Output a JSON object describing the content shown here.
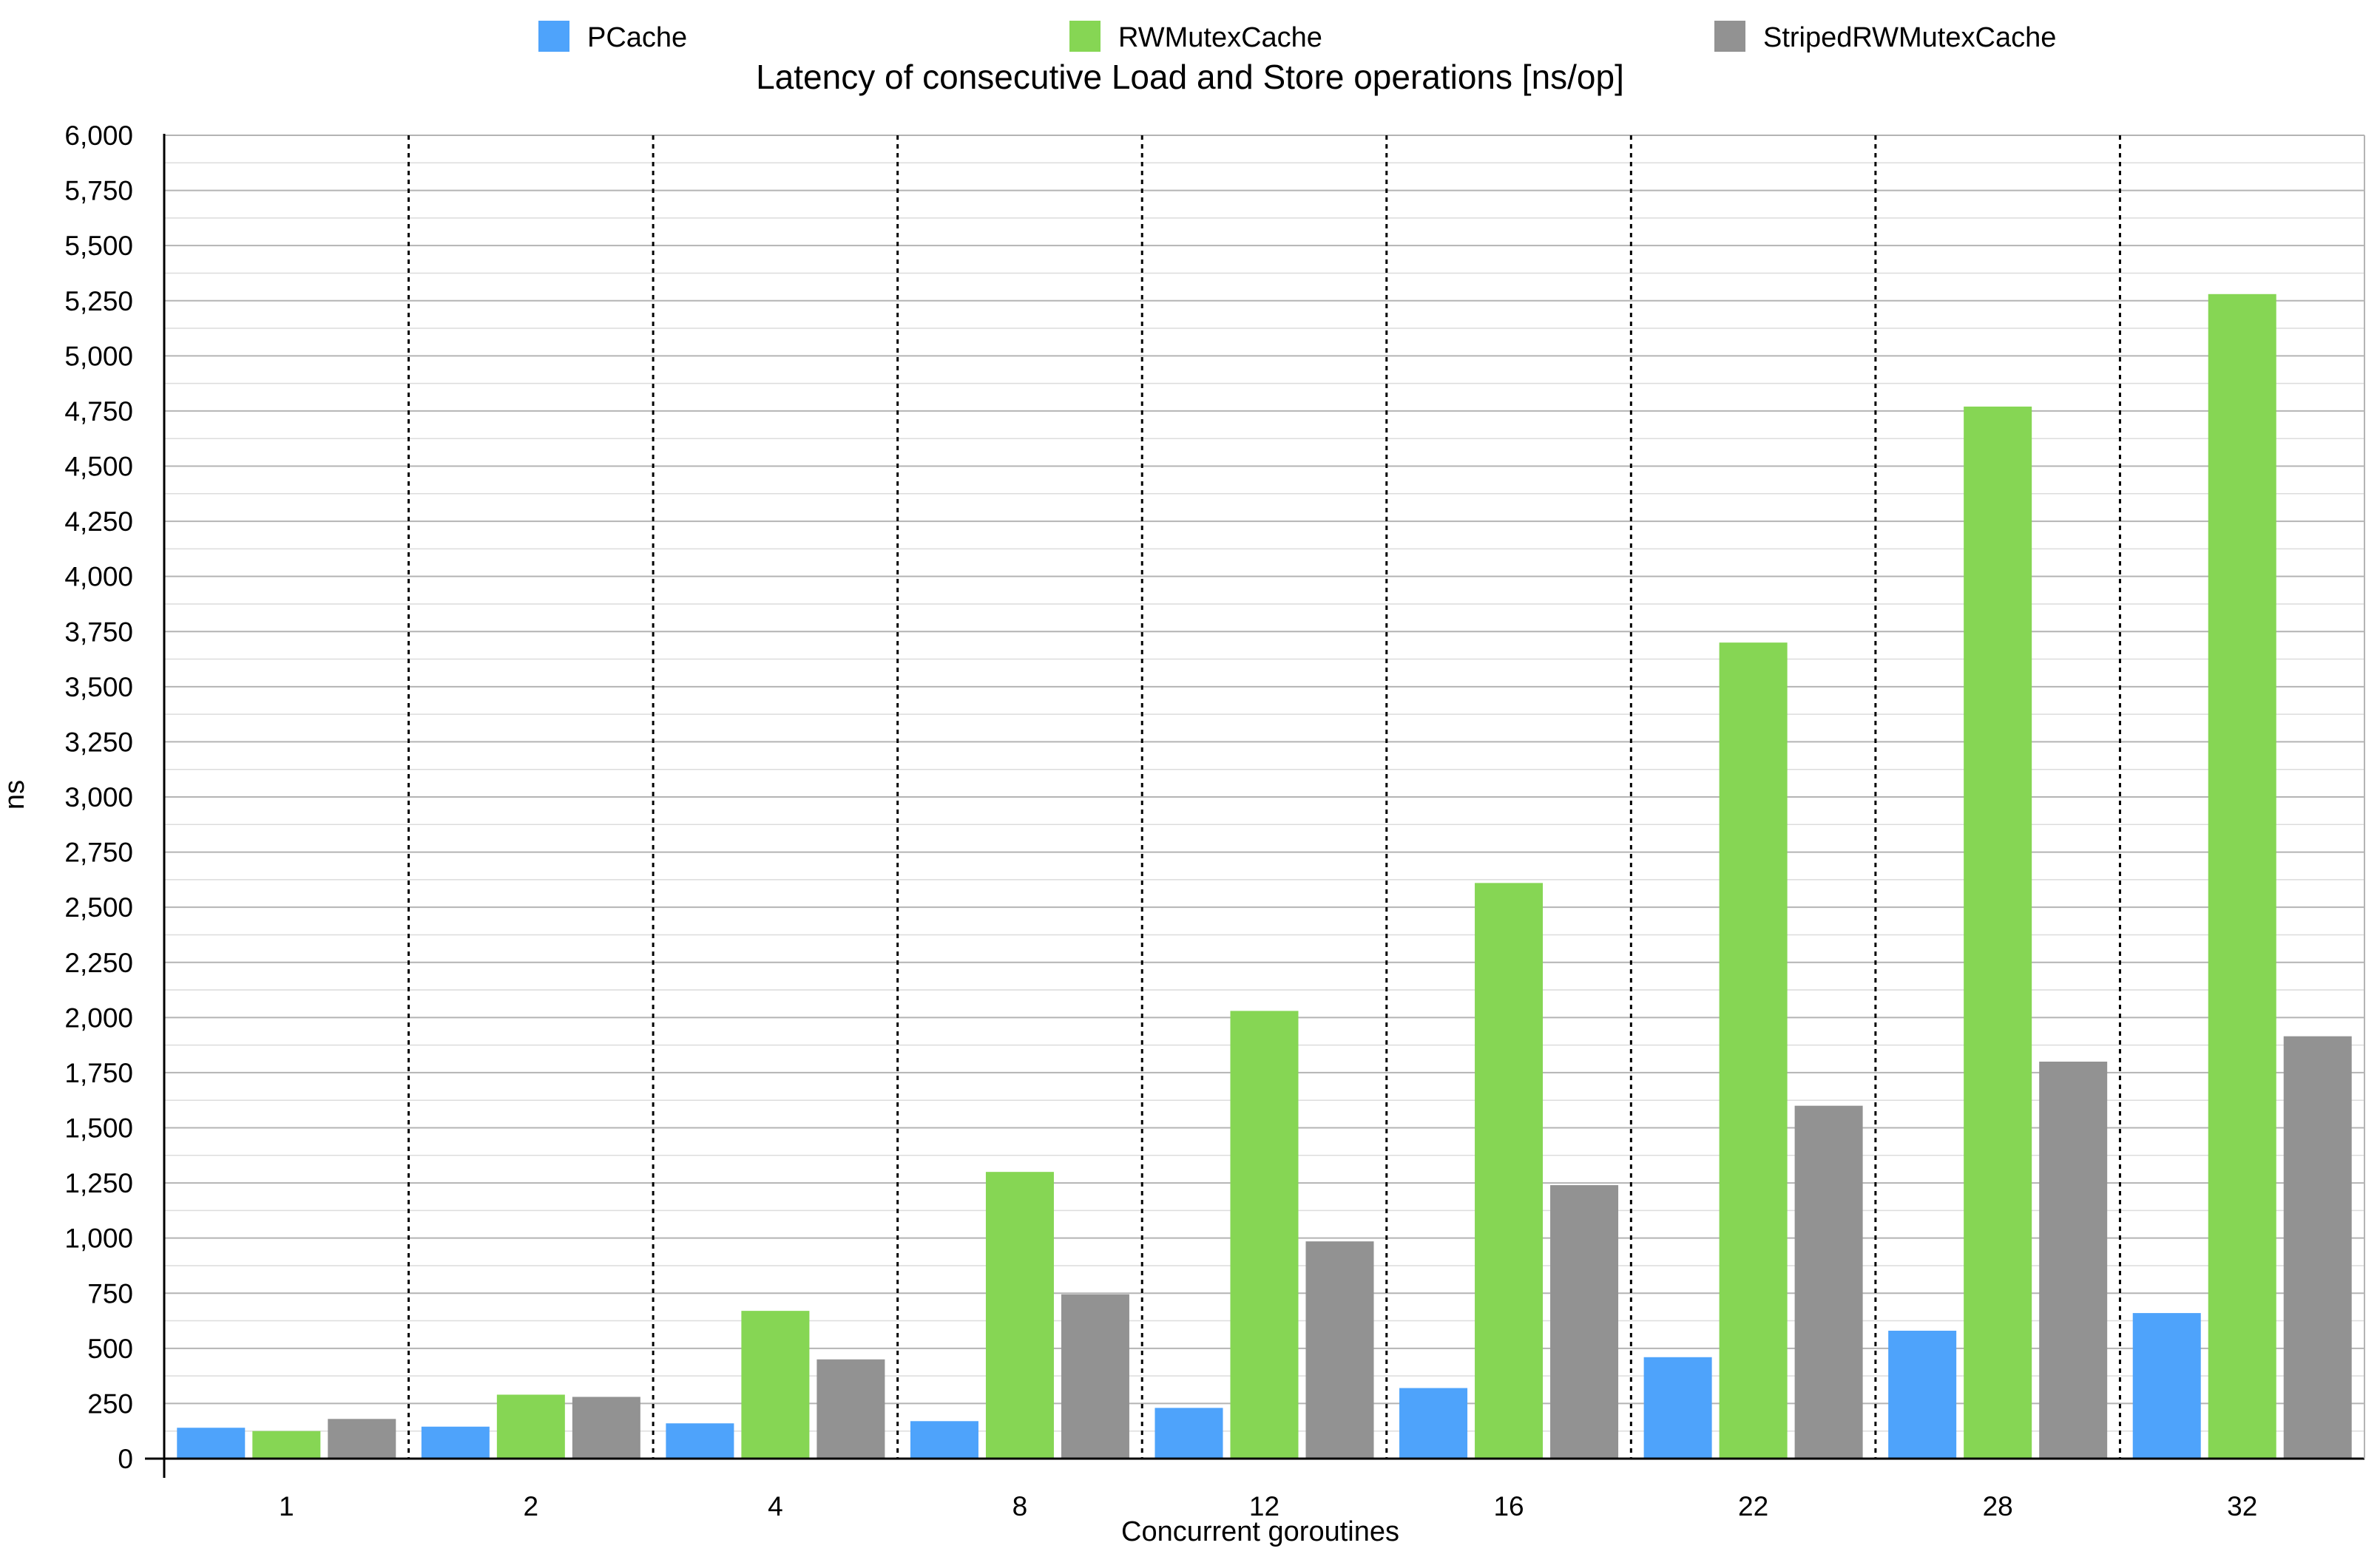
{
  "chart_data": {
    "type": "bar",
    "title": "Latency of consecutive Load and Store operations [ns/op]",
    "xlabel": "Concurrent goroutines",
    "ylabel": "ns",
    "categories": [
      "1",
      "2",
      "4",
      "8",
      "12",
      "16",
      "22",
      "28",
      "32"
    ],
    "ylim": [
      0,
      6000
    ],
    "y_major_step": 250,
    "y_minor_step": 125,
    "y_tick_labels": [
      "0",
      "250",
      "500",
      "750",
      "1,000",
      "1,250",
      "1,500",
      "1,750",
      "2,000",
      "2,250",
      "2,500",
      "2,750",
      "3,000",
      "3,250",
      "3,500",
      "3,750",
      "4,000",
      "4,250",
      "4,500",
      "4,750",
      "5,000",
      "5,250",
      "5,500",
      "5,750",
      "6,000"
    ],
    "grid": true,
    "legend_position": "top",
    "series": [
      {
        "name": "PCache",
        "color": "#4ea3fb",
        "values": [
          140,
          145,
          160,
          170,
          230,
          320,
          460,
          580,
          660
        ]
      },
      {
        "name": "RWMutexCache",
        "color": "#86d654",
        "values": [
          125,
          290,
          670,
          1300,
          2030,
          2610,
          3700,
          4770,
          5280
        ]
      },
      {
        "name": "StripedRWMutexCache",
        "color": "#929292",
        "values": [
          180,
          280,
          450,
          745,
          985,
          1240,
          1600,
          1800,
          1915
        ]
      }
    ]
  }
}
